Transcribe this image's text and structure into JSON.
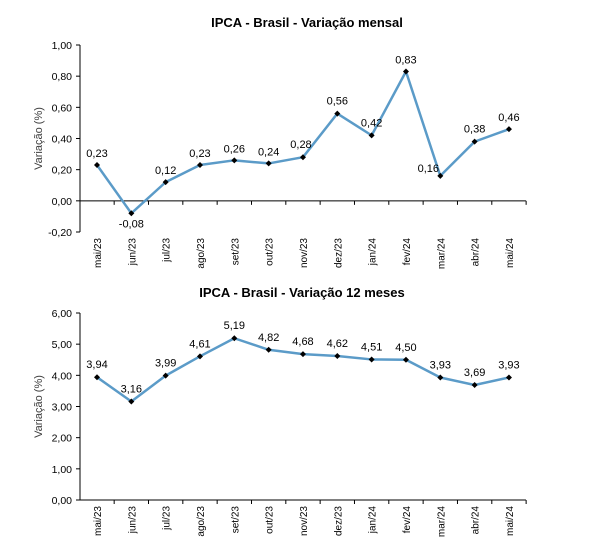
{
  "chart_data": [
    {
      "type": "line",
      "title": "IPCA - Brasil - Variação mensal",
      "ylabel": "Variação (%)",
      "xlabel": "",
      "ylim": [
        -0.2,
        1.0
      ],
      "yticks": [
        -0.2,
        0.0,
        0.2,
        0.4,
        0.6,
        0.8,
        1.0
      ],
      "ytick_labels": [
        "-0,20",
        "0,00",
        "0,20",
        "0,40",
        "0,60",
        "0,80",
        "1,00"
      ],
      "categories": [
        "mai/23",
        "jun/23",
        "jul/23",
        "ago/23",
        "set/23",
        "out/23",
        "nov/23",
        "dez/23",
        "jan/24",
        "fev/24",
        "mar/24",
        "abr/24",
        "mai/24"
      ],
      "values": [
        0.23,
        -0.08,
        0.12,
        0.23,
        0.26,
        0.24,
        0.28,
        0.56,
        0.42,
        0.83,
        0.16,
        0.38,
        0.46
      ],
      "value_labels": [
        "0,23",
        "-0,08",
        "0,12",
        "0,23",
        "0,26",
        "0,24",
        "0,28",
        "0,56",
        "0,42",
        "0,83",
        "0,16",
        "0,38",
        "0,46"
      ],
      "series_color": "#5b9bc8",
      "grid": false
    },
    {
      "type": "line",
      "title": "IPCA - Brasil - Variação 12 meses",
      "ylabel": "Variação (%)",
      "xlabel": "",
      "ylim": [
        0.0,
        6.0
      ],
      "yticks": [
        0.0,
        1.0,
        2.0,
        3.0,
        4.0,
        5.0,
        6.0
      ],
      "ytick_labels": [
        "0,00",
        "1,00",
        "2,00",
        "3,00",
        "4,00",
        "5,00",
        "6,00"
      ],
      "categories": [
        "mai/23",
        "jun/23",
        "jul/23",
        "ago/23",
        "set/23",
        "out/23",
        "nov/23",
        "dez/23",
        "jan/24",
        "fev/24",
        "mar/24",
        "abr/24",
        "mai/24"
      ],
      "values": [
        3.94,
        3.16,
        3.99,
        4.61,
        5.19,
        4.82,
        4.68,
        4.62,
        4.51,
        4.5,
        3.93,
        3.69,
        3.93
      ],
      "value_labels": [
        "3,94",
        "3,16",
        "3,99",
        "4,61",
        "5,19",
        "4,82",
        "4,68",
        "4,62",
        "4,51",
        "4,50",
        "3,93",
        "3,69",
        "3,93"
      ],
      "series_color": "#5b9bc8",
      "grid": false
    }
  ]
}
